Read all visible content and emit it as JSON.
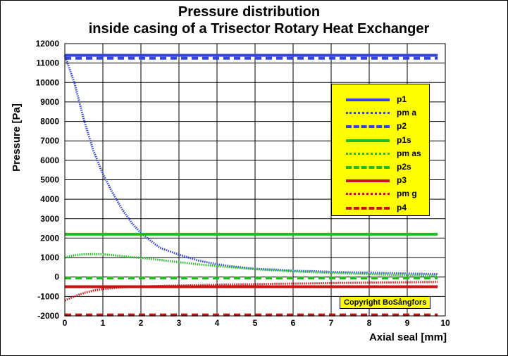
{
  "chart_data": {
    "type": "line",
    "title": "Pressure distribution",
    "subtitle": "inside casing of a Trisector Rotary Heat Exchanger",
    "xlabel": "Axial seal [mm]",
    "ylabel": "Pressure [Pa]",
    "xlim": [
      0,
      10
    ],
    "ylim": [
      -2000,
      12000
    ],
    "xticks": [
      "0",
      "1",
      "2",
      "3",
      "4",
      "5",
      "6",
      "7",
      "8",
      "9",
      "10"
    ],
    "yticks": [
      "-2000",
      "-1000",
      "0",
      "1000",
      "2000",
      "3000",
      "4000",
      "5000",
      "6000",
      "7000",
      "8000",
      "9000",
      "10000",
      "11000",
      "12000"
    ],
    "grid": true,
    "legend_position": "top-right",
    "x": [
      0,
      0.25,
      0.5,
      0.75,
      1,
      1.25,
      1.5,
      1.75,
      2,
      2.5,
      3,
      3.5,
      4,
      4.5,
      5,
      5.5,
      6,
      6.5,
      7,
      7.5,
      8,
      8.5,
      9,
      9.5,
      9.8
    ],
    "series": [
      {
        "name": "p1",
        "color": "#3344dd",
        "style": "solid",
        "values": [
          11400,
          11400,
          11400,
          11400,
          11400,
          11400,
          11400,
          11400,
          11400,
          11400,
          11400,
          11400,
          11400,
          11400,
          11400,
          11400,
          11400,
          11400,
          11400,
          11400,
          11400,
          11400,
          11400,
          11400,
          11400
        ]
      },
      {
        "name": "pma",
        "color": "#3344dd",
        "style": "dotted",
        "values": [
          11400,
          10000,
          8100,
          6500,
          5300,
          4350,
          3500,
          2800,
          2250,
          1500,
          1150,
          850,
          650,
          520,
          420,
          380,
          320,
          300,
          260,
          240,
          220,
          200,
          180,
          160,
          150
        ]
      },
      {
        "name": "p2",
        "color": "#3344dd",
        "style": "dashed",
        "values": [
          11250,
          11250,
          11250,
          11250,
          11250,
          11250,
          11250,
          11250,
          11250,
          11250,
          11250,
          11250,
          11250,
          11250,
          11250,
          11250,
          11250,
          11250,
          11250,
          11250,
          11250,
          11250,
          11250,
          11250,
          11250
        ]
      },
      {
        "name": "p1s",
        "color": "#22bb22",
        "style": "solid",
        "values": [
          2200,
          2200,
          2200,
          2200,
          2200,
          2200,
          2200,
          2200,
          2200,
          2200,
          2200,
          2200,
          2200,
          2200,
          2200,
          2200,
          2200,
          2200,
          2200,
          2200,
          2200,
          2200,
          2200,
          2200,
          2200
        ]
      },
      {
        "name": "pmas",
        "color": "#22bb22",
        "style": "dotted",
        "values": [
          1000,
          1120,
          1170,
          1180,
          1170,
          1130,
          1070,
          1020,
          980,
          880,
          760,
          650,
          560,
          480,
          400,
          340,
          290,
          250,
          210,
          180,
          150,
          120,
          100,
          80,
          70
        ]
      },
      {
        "name": "p2s",
        "color": "#22bb22",
        "style": "dashed",
        "values": [
          -50,
          -50,
          -50,
          -50,
          -50,
          -50,
          -50,
          -50,
          -50,
          -50,
          -50,
          -50,
          -50,
          -50,
          -50,
          -50,
          -50,
          -50,
          -50,
          -50,
          -50,
          -50,
          -50,
          -50,
          -50
        ]
      },
      {
        "name": "p3",
        "color": "#cc1111",
        "style": "solid",
        "values": [
          -500,
          -500,
          -500,
          -500,
          -500,
          -500,
          -500,
          -500,
          -500,
          -500,
          -500,
          -500,
          -500,
          -500,
          -500,
          -500,
          -500,
          -500,
          -500,
          -500,
          -500,
          -500,
          -500,
          -500,
          -500
        ]
      },
      {
        "name": "pmg",
        "color": "#cc1111",
        "style": "dotted",
        "values": [
          -1200,
          -1000,
          -820,
          -700,
          -620,
          -570,
          -530,
          -510,
          -490,
          -460,
          -440,
          -420,
          -400,
          -380,
          -370,
          -350,
          -340,
          -330,
          -310,
          -300,
          -290,
          -280,
          -270,
          -260,
          -250
        ]
      },
      {
        "name": "p4",
        "color": "#cc1111",
        "style": "dashed",
        "values": [
          -1950,
          -1950,
          -1950,
          -1950,
          -1950,
          -1950,
          -1950,
          -1950,
          -1950,
          -1950,
          -1950,
          -1950,
          -1950,
          -1950,
          -1950,
          -1950,
          -1950,
          -1950,
          -1950,
          -1950,
          -1950,
          -1950,
          -1950,
          -1950,
          -1950
        ]
      }
    ],
    "legend_labels": [
      "p1",
      "pm a",
      "p2",
      "p1s",
      "pm as",
      "p2s",
      "p3",
      "pm g",
      "p4"
    ],
    "annotation": "Copyright BoSångfors"
  }
}
